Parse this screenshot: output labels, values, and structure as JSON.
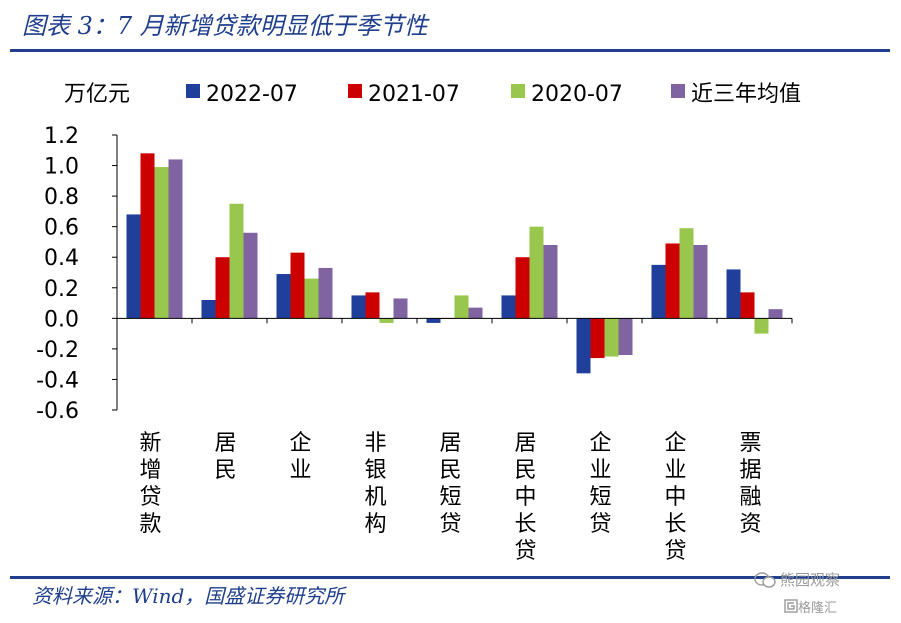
{
  "header": {
    "title": "图表 3：7 月新增贷款明显低于季节性"
  },
  "footer": {
    "source": "资料来源：Wind，国盛证券研究所"
  },
  "watermark": {
    "line1": "熊园观察",
    "line2": "格隆汇"
  },
  "colors": {
    "accent": "#1f3f8c",
    "series": [
      "#1f3f9a",
      "#cc0000",
      "#99c64c",
      "#8064a2"
    ]
  },
  "chart_data": {
    "type": "bar",
    "ylabel": "万亿元",
    "ylim": [
      -0.6,
      1.2
    ],
    "yticks": [
      "1.2",
      "1.0",
      "0.8",
      "0.6",
      "0.4",
      "0.2",
      "0.0",
      "-0.2",
      "-0.4",
      "-0.6"
    ],
    "grid": false,
    "legend_position": "top",
    "categories": [
      "新增贷款",
      "居民",
      "企业",
      "非银机构",
      "居民短贷",
      "居民中长贷",
      "企业短贷",
      "企业中长贷",
      "票据融资"
    ],
    "series": [
      {
        "name": "2022-07",
        "values": [
          0.68,
          0.12,
          0.29,
          0.15,
          -0.03,
          0.15,
          -0.36,
          0.35,
          0.32
        ]
      },
      {
        "name": "2021-07",
        "values": [
          1.08,
          0.4,
          0.43,
          0.17,
          0.0,
          0.4,
          -0.26,
          0.49,
          0.17
        ]
      },
      {
        "name": "2020-07",
        "values": [
          0.99,
          0.75,
          0.26,
          -0.03,
          0.15,
          0.6,
          -0.25,
          0.59,
          -0.1
        ]
      },
      {
        "name": "近三年均值",
        "values": [
          1.04,
          0.56,
          0.33,
          0.13,
          0.07,
          0.48,
          -0.24,
          0.48,
          0.06
        ]
      }
    ]
  }
}
